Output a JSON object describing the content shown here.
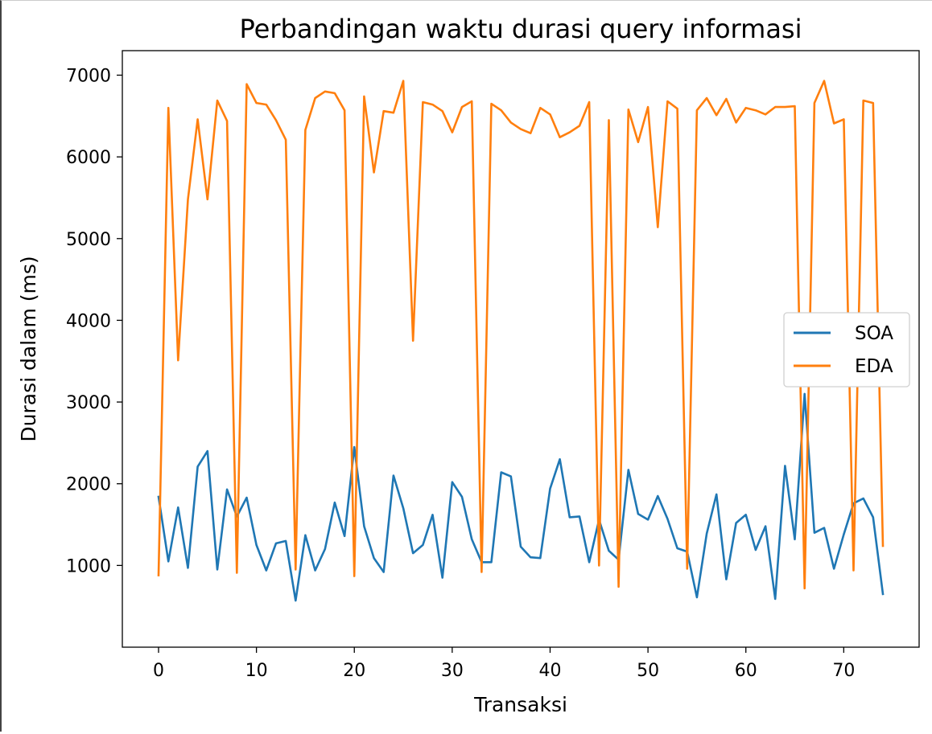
{
  "chart_data": {
    "type": "line",
    "title": "Perbandingan waktu durasi query informasi",
    "xlabel": "Transaksi",
    "ylabel": "Durasi dalam (ms)",
    "xlim": [
      -3.7,
      77.7
    ],
    "ylim": [
      0,
      7300
    ],
    "xticks": [
      0,
      10,
      20,
      30,
      40,
      50,
      60,
      70
    ],
    "yticks": [
      1000,
      2000,
      3000,
      4000,
      5000,
      6000,
      7000
    ],
    "grid": false,
    "legend": {
      "placement": "center-right"
    },
    "series": [
      {
        "name": "SOA",
        "color": "#1f77b4",
        "x": [
          0,
          1,
          2,
          3,
          4,
          5,
          6,
          7,
          8,
          9,
          10,
          11,
          12,
          13,
          14,
          15,
          16,
          17,
          18,
          19,
          20,
          21,
          22,
          23,
          24,
          25,
          26,
          27,
          28,
          29,
          30,
          31,
          32,
          33,
          34,
          35,
          36,
          37,
          38,
          39,
          40,
          41,
          42,
          43,
          44,
          45,
          46,
          47,
          48,
          49,
          50,
          51,
          52,
          53,
          54,
          55,
          56,
          57,
          58,
          59,
          60,
          61,
          62,
          63,
          64,
          65,
          66,
          67,
          68,
          69,
          70,
          71,
          72,
          73,
          74
        ],
        "values": [
          1840,
          1050,
          1710,
          970,
          2210,
          2400,
          950,
          1930,
          1600,
          1830,
          1250,
          940,
          1270,
          1300,
          570,
          1370,
          940,
          1200,
          1770,
          1360,
          2450,
          1480,
          1090,
          920,
          2100,
          1700,
          1150,
          1250,
          1620,
          850,
          2020,
          1840,
          1320,
          1040,
          1040,
          2140,
          2090,
          1230,
          1100,
          1090,
          1940,
          2300,
          1590,
          1600,
          1040,
          1560,
          1180,
          1070,
          2170,
          1630,
          1560,
          1850,
          1570,
          1210,
          1170,
          610,
          1390,
          1870,
          830,
          1520,
          1620,
          1190,
          1480,
          590,
          2220,
          1320,
          3100,
          1400,
          1460,
          960,
          1380,
          1760,
          1820,
          1590,
          650
        ]
      },
      {
        "name": "EDA",
        "color": "#ff7f0e",
        "x": [
          0,
          1,
          2,
          3,
          4,
          5,
          6,
          7,
          8,
          9,
          10,
          11,
          12,
          13,
          14,
          15,
          16,
          17,
          18,
          19,
          20,
          21,
          22,
          23,
          24,
          25,
          26,
          27,
          28,
          29,
          30,
          31,
          32,
          33,
          34,
          35,
          36,
          37,
          38,
          39,
          40,
          41,
          42,
          43,
          44,
          45,
          46,
          47,
          48,
          49,
          50,
          51,
          52,
          53,
          54,
          55,
          56,
          57,
          58,
          59,
          60,
          61,
          62,
          63,
          64,
          65,
          66,
          67,
          68,
          69,
          70,
          71,
          72,
          73,
          74
        ],
        "values": [
          880,
          6600,
          3510,
          5480,
          6460,
          5480,
          6690,
          6440,
          910,
          6890,
          6660,
          6640,
          6450,
          6210,
          950,
          6330,
          6720,
          6800,
          6780,
          6570,
          870,
          6740,
          5810,
          6560,
          6540,
          6930,
          3750,
          6670,
          6640,
          6560,
          6300,
          6610,
          6680,
          920,
          6650,
          6570,
          6420,
          6340,
          6290,
          6600,
          6520,
          6240,
          6300,
          6380,
          6670,
          1000,
          6450,
          740,
          6580,
          6180,
          6610,
          5140,
          6680,
          6590,
          960,
          6570,
          6720,
          6510,
          6710,
          6420,
          6600,
          6570,
          6520,
          6610,
          6610,
          6620,
          720,
          6660,
          6930,
          6410,
          6460,
          940,
          6690,
          6660,
          1240
        ]
      }
    ]
  }
}
